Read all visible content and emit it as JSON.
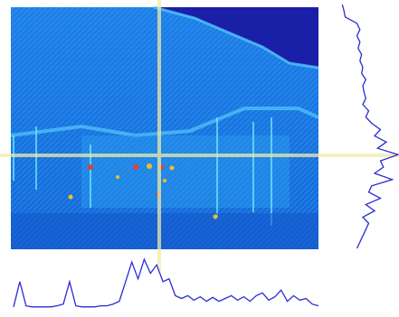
{
  "horizontal_profile": {
    "color": "#2b2bd6",
    "values": [
      0.1,
      0.55,
      0.12,
      0.1,
      0.1,
      0.1,
      0.1,
      0.12,
      0.15,
      0.55,
      0.12,
      0.1,
      0.1,
      0.1,
      0.12,
      0.12,
      0.15,
      0.2,
      0.55,
      0.9,
      0.6,
      0.95,
      0.7,
      0.85,
      0.55,
      0.6,
      0.3,
      0.25,
      0.3,
      0.22,
      0.28,
      0.2,
      0.27,
      0.2,
      0.25,
      0.3,
      0.22,
      0.28,
      0.2,
      0.3,
      0.35,
      0.22,
      0.28,
      0.4,
      0.2,
      0.3,
      0.22,
      0.25,
      0.15,
      0.12
    ]
  },
  "vertical_profile": {
    "color": "#2b2bd6",
    "values": [
      0.05,
      0.08,
      0.1,
      0.3,
      0.35,
      0.3,
      0.35,
      0.32,
      0.38,
      0.35,
      0.4,
      0.38,
      0.45,
      0.4,
      0.42,
      0.45,
      0.4,
      0.5,
      0.45,
      0.55,
      0.7,
      0.6,
      0.8,
      0.65,
      1.0,
      0.7,
      0.75,
      0.6,
      0.9,
      0.55,
      0.5,
      0.7,
      0.45,
      0.6,
      0.4,
      0.5,
      0.45,
      0.4,
      0.35,
      0.3
    ]
  }
}
